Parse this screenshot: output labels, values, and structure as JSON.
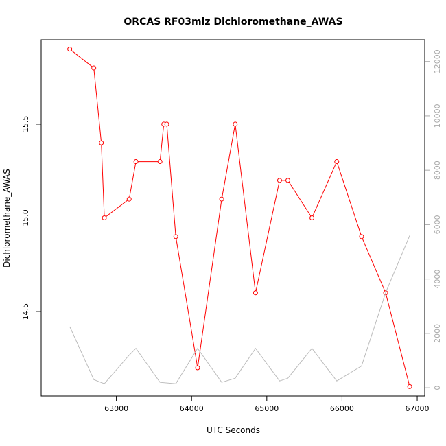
{
  "chart_data": {
    "type": "line",
    "title": "ORCAS RF03miz Dichloromethane_AWAS",
    "xlabel": "UTC Seconds",
    "ylabel": "Dichloromethane_AWAS",
    "xlim": [
      62000,
      67100
    ],
    "ylim": [
      14.05,
      15.95
    ],
    "y2lim": [
      -300,
      12800
    ],
    "x_ticks": [
      63000,
      64000,
      65000,
      66000,
      67000
    ],
    "y_ticks": [
      14.5,
      15.0,
      15.5
    ],
    "y2_ticks": [
      0,
      2000,
      4000,
      6000,
      8000,
      10000,
      12000
    ],
    "grid": false,
    "series": [
      {
        "color": "#ff0000",
        "markers": "open-circle",
        "axis": "left",
        "x": [
          62380,
          62700,
          62800,
          62840,
          63170,
          63260,
          63580,
          63630,
          63670,
          63790,
          64080,
          64400,
          64580,
          64850,
          65170,
          65280,
          65600,
          65930,
          66260,
          66580,
          66900
        ],
        "y": [
          15.9,
          15.8,
          15.4,
          15.0,
          15.1,
          15.3,
          15.3,
          15.5,
          15.5,
          14.9,
          14.2,
          15.1,
          15.5,
          14.6,
          15.2,
          15.2,
          15.0,
          15.3,
          14.9,
          14.6,
          14.1
        ]
      },
      {
        "color": "#bbbbbb",
        "markers": "none",
        "axis": "right",
        "x": [
          62380,
          62700,
          62840,
          63170,
          63260,
          63580,
          63790,
          64080,
          64400,
          64580,
          64850,
          65170,
          65280,
          65600,
          65930,
          66260,
          66580,
          66900
        ],
        "y": [
          2250,
          300,
          150,
          1200,
          1450,
          200,
          150,
          1450,
          200,
          350,
          1450,
          250,
          350,
          1450,
          250,
          800,
          3500,
          5600
        ]
      }
    ]
  }
}
